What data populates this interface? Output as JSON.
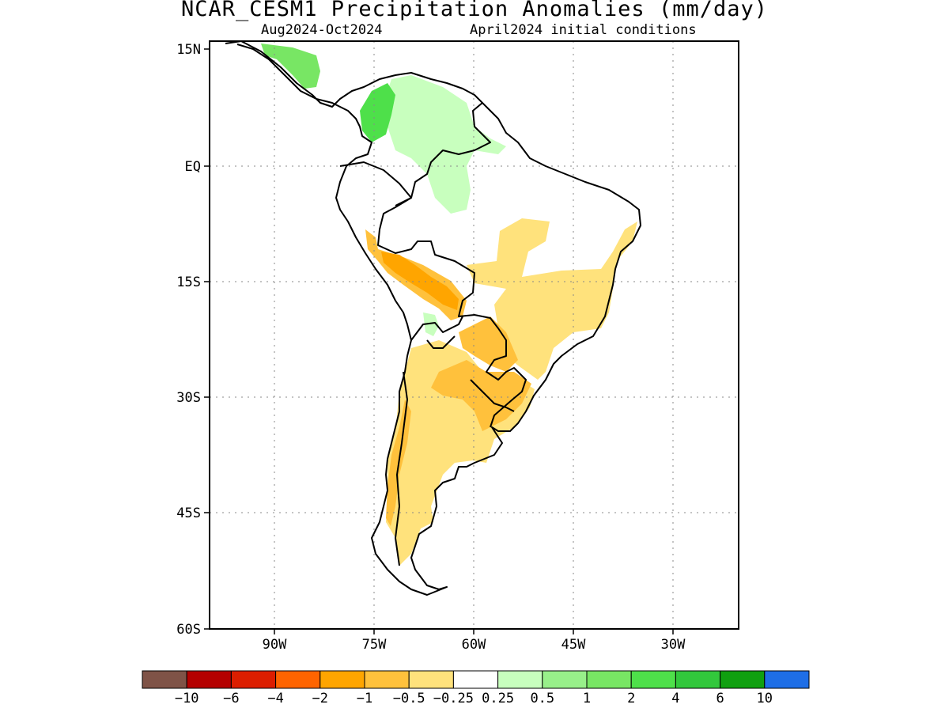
{
  "title": "NCAR_CESM1 Precipitation Anomalies (mm/day)",
  "subtitle_left": "Aug2024-Oct2024",
  "subtitle_right": "April2024 initial conditions",
  "map": {
    "lon_range": [
      -97,
      -24
    ],
    "lat_range": [
      -60,
      15
    ],
    "y_ticks": [
      "15N",
      "EQ",
      "15S",
      "30S",
      "45S",
      "60S"
    ],
    "x_ticks": [
      "90W",
      "75W",
      "60W",
      "45W",
      "30W"
    ],
    "grid": "dotted"
  },
  "colorbar": {
    "colors": [
      "#7f5347",
      "#b40000",
      "#dc1e00",
      "#ff6400",
      "#ffa500",
      "#ffc13c",
      "#ffe27c",
      "#ffffff",
      "#c8ffbe",
      "#98f08a",
      "#78e664",
      "#4ee04a",
      "#32c83c",
      "#10a010",
      "#1e6ee6"
    ],
    "labels": [
      "-10",
      "-6",
      "-4",
      "-2",
      "-1",
      "-0.5",
      "-0.25",
      "0.25",
      "0.5",
      "1",
      "2",
      "4",
      "6",
      "10"
    ]
  },
  "anomaly_regions": [
    {
      "name": "northern-colombia-wet",
      "level": "2"
    },
    {
      "name": "central-america-wet",
      "level": "1"
    },
    {
      "name": "venezuela-guiana-wet",
      "level": "0.5"
    },
    {
      "name": "northwest-amazon-wet",
      "level": "0.5"
    },
    {
      "name": "central-brazil-dry",
      "level": "-0.25"
    },
    {
      "name": "southern-brazil-dry",
      "level": "-0.5"
    },
    {
      "name": "bolivia-dry-core",
      "level": "-1"
    },
    {
      "name": "argentina-chile-dry",
      "level": "-0.5"
    },
    {
      "name": "patagonia-dry",
      "level": "-0.5"
    },
    {
      "name": "southern-bolivia-wet",
      "level": "0.5"
    }
  ]
}
